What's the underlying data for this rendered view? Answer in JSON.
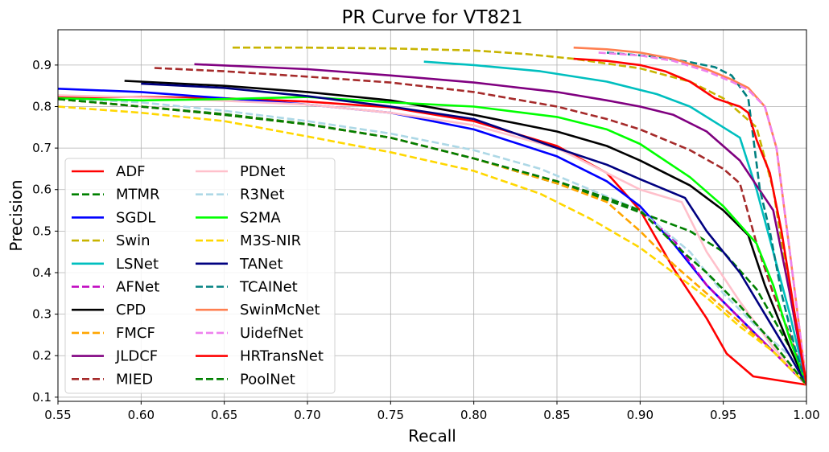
{
  "chart_data": {
    "type": "line",
    "title": "PR Curve for VT821",
    "xlabel": "Recall",
    "ylabel": "Precision",
    "xlim": [
      0.55,
      1.0
    ],
    "ylim": [
      0.09,
      0.985
    ],
    "grid": true,
    "legend_position": "lower-left",
    "xticks": [
      "0.55",
      "0.60",
      "0.65",
      "0.70",
      "0.75",
      "0.80",
      "0.85",
      "0.90",
      "0.95",
      "1.00"
    ],
    "xtick_values": [
      0.55,
      0.6,
      0.65,
      0.7,
      0.75,
      0.8,
      0.85,
      0.9,
      0.95,
      1.0
    ],
    "yticks": [
      "0.1",
      "0.2",
      "0.3",
      "0.4",
      "0.5",
      "0.6",
      "0.7",
      "0.8",
      "0.9"
    ],
    "ytick_values": [
      0.1,
      0.2,
      0.3,
      0.4,
      0.5,
      0.6,
      0.7,
      0.8,
      0.9
    ],
    "series": [
      {
        "name": "ADF",
        "color": "#ff0000",
        "dash": "solid",
        "points": [
          [
            0.55,
            0.822
          ],
          [
            0.6,
            0.823
          ],
          [
            0.65,
            0.82
          ],
          [
            0.7,
            0.812
          ],
          [
            0.75,
            0.798
          ],
          [
            0.8,
            0.765
          ],
          [
            0.85,
            0.705
          ],
          [
            0.88,
            0.64
          ],
          [
            0.9,
            0.55
          ],
          [
            0.92,
            0.41
          ],
          [
            0.94,
            0.29
          ],
          [
            0.952,
            0.205
          ],
          [
            0.968,
            0.15
          ],
          [
            1.0,
            0.13
          ]
        ]
      },
      {
        "name": "MTMR",
        "color": "#008000",
        "dash": "dashed",
        "points": [
          [
            0.55,
            0.818
          ],
          [
            0.6,
            0.8
          ],
          [
            0.65,
            0.782
          ],
          [
            0.7,
            0.758
          ],
          [
            0.75,
            0.725
          ],
          [
            0.8,
            0.675
          ],
          [
            0.85,
            0.615
          ],
          [
            0.88,
            0.575
          ],
          [
            0.9,
            0.545
          ],
          [
            0.93,
            0.5
          ],
          [
            0.95,
            0.45
          ],
          [
            0.97,
            0.36
          ],
          [
            0.99,
            0.22
          ],
          [
            1.0,
            0.13
          ]
        ]
      },
      {
        "name": "SGDL",
        "color": "#0000ff",
        "dash": "solid",
        "points": [
          [
            0.55,
            0.843
          ],
          [
            0.6,
            0.835
          ],
          [
            0.65,
            0.82
          ],
          [
            0.7,
            0.805
          ],
          [
            0.75,
            0.785
          ],
          [
            0.8,
            0.745
          ],
          [
            0.85,
            0.68
          ],
          [
            0.88,
            0.62
          ],
          [
            0.9,
            0.56
          ],
          [
            0.92,
            0.47
          ],
          [
            0.94,
            0.37
          ],
          [
            0.96,
            0.29
          ],
          [
            0.98,
            0.21
          ],
          [
            1.0,
            0.13
          ]
        ]
      },
      {
        "name": "Swin",
        "color": "#c8b400",
        "dash": "dashed",
        "points": [
          [
            0.655,
            0.942
          ],
          [
            0.7,
            0.942
          ],
          [
            0.75,
            0.94
          ],
          [
            0.8,
            0.935
          ],
          [
            0.83,
            0.927
          ],
          [
            0.86,
            0.915
          ],
          [
            0.9,
            0.892
          ],
          [
            0.93,
            0.86
          ],
          [
            0.95,
            0.82
          ],
          [
            0.97,
            0.75
          ],
          [
            0.98,
            0.6
          ],
          [
            0.99,
            0.35
          ],
          [
            1.0,
            0.13
          ]
        ]
      },
      {
        "name": "LSNet",
        "color": "#00bfbf",
        "dash": "solid",
        "points": [
          [
            0.77,
            0.908
          ],
          [
            0.8,
            0.9
          ],
          [
            0.84,
            0.885
          ],
          [
            0.88,
            0.86
          ],
          [
            0.91,
            0.83
          ],
          [
            0.93,
            0.8
          ],
          [
            0.95,
            0.75
          ],
          [
            0.96,
            0.725
          ],
          [
            0.97,
            0.6
          ],
          [
            0.98,
            0.45
          ],
          [
            0.99,
            0.3
          ],
          [
            1.0,
            0.13
          ]
        ]
      },
      {
        "name": "AFNet",
        "color": "#bf00bf",
        "dash": "dashed",
        "points": [
          [
            0.55,
            0.818
          ],
          [
            0.6,
            0.8
          ],
          [
            0.65,
            0.78
          ],
          [
            0.7,
            0.757
          ],
          [
            0.75,
            0.725
          ],
          [
            0.8,
            0.675
          ],
          [
            0.85,
            0.62
          ],
          [
            0.88,
            0.58
          ],
          [
            0.9,
            0.55
          ],
          [
            0.92,
            0.48
          ],
          [
            0.94,
            0.37
          ],
          [
            0.96,
            0.29
          ],
          [
            0.98,
            0.21
          ],
          [
            1.0,
            0.13
          ]
        ]
      },
      {
        "name": "CPD",
        "color": "#000000",
        "dash": "solid",
        "points": [
          [
            0.59,
            0.862
          ],
          [
            0.65,
            0.85
          ],
          [
            0.7,
            0.835
          ],
          [
            0.75,
            0.815
          ],
          [
            0.8,
            0.78
          ],
          [
            0.85,
            0.74
          ],
          [
            0.88,
            0.705
          ],
          [
            0.9,
            0.67
          ],
          [
            0.93,
            0.61
          ],
          [
            0.95,
            0.55
          ],
          [
            0.965,
            0.49
          ],
          [
            0.975,
            0.37
          ],
          [
            0.99,
            0.22
          ],
          [
            1.0,
            0.13
          ]
        ]
      },
      {
        "name": "FMCF",
        "color": "#ffa500",
        "dash": "dashed",
        "points": [
          [
            0.55,
            0.818
          ],
          [
            0.6,
            0.8
          ],
          [
            0.65,
            0.78
          ],
          [
            0.7,
            0.757
          ],
          [
            0.75,
            0.725
          ],
          [
            0.8,
            0.675
          ],
          [
            0.85,
            0.615
          ],
          [
            0.88,
            0.57
          ],
          [
            0.9,
            0.5
          ],
          [
            0.92,
            0.42
          ],
          [
            0.94,
            0.35
          ],
          [
            0.96,
            0.28
          ],
          [
            0.98,
            0.21
          ],
          [
            1.0,
            0.13
          ]
        ]
      },
      {
        "name": "JLDCF",
        "color": "#800080",
        "dash": "solid",
        "points": [
          [
            0.632,
            0.902
          ],
          [
            0.7,
            0.89
          ],
          [
            0.75,
            0.875
          ],
          [
            0.8,
            0.858
          ],
          [
            0.85,
            0.835
          ],
          [
            0.88,
            0.815
          ],
          [
            0.9,
            0.8
          ],
          [
            0.92,
            0.78
          ],
          [
            0.94,
            0.74
          ],
          [
            0.96,
            0.67
          ],
          [
            0.98,
            0.55
          ],
          [
            0.99,
            0.35
          ],
          [
            1.0,
            0.13
          ]
        ]
      },
      {
        "name": "MIED",
        "color": "#a52a2a",
        "dash": "dashed",
        "points": [
          [
            0.608,
            0.893
          ],
          [
            0.65,
            0.885
          ],
          [
            0.7,
            0.872
          ],
          [
            0.75,
            0.858
          ],
          [
            0.8,
            0.835
          ],
          [
            0.85,
            0.8
          ],
          [
            0.88,
            0.77
          ],
          [
            0.9,
            0.745
          ],
          [
            0.93,
            0.695
          ],
          [
            0.95,
            0.65
          ],
          [
            0.96,
            0.615
          ],
          [
            0.97,
            0.47
          ],
          [
            0.98,
            0.35
          ],
          [
            0.99,
            0.25
          ],
          [
            1.0,
            0.13
          ]
        ]
      },
      {
        "name": "PDNet",
        "color": "#ffc0cb",
        "dash": "solid",
        "points": [
          [
            0.55,
            0.827
          ],
          [
            0.6,
            0.822
          ],
          [
            0.65,
            0.814
          ],
          [
            0.7,
            0.805
          ],
          [
            0.75,
            0.785
          ],
          [
            0.8,
            0.755
          ],
          [
            0.85,
            0.7
          ],
          [
            0.88,
            0.64
          ],
          [
            0.9,
            0.6
          ],
          [
            0.925,
            0.57
          ],
          [
            0.94,
            0.45
          ],
          [
            0.96,
            0.33
          ],
          [
            0.98,
            0.22
          ],
          [
            1.0,
            0.13
          ]
        ]
      },
      {
        "name": "R3Net",
        "color": "#add8e6",
        "dash": "dashed",
        "points": [
          [
            0.55,
            0.82
          ],
          [
            0.6,
            0.81
          ],
          [
            0.65,
            0.79
          ],
          [
            0.7,
            0.765
          ],
          [
            0.75,
            0.735
          ],
          [
            0.8,
            0.695
          ],
          [
            0.84,
            0.65
          ],
          [
            0.87,
            0.6
          ],
          [
            0.9,
            0.55
          ],
          [
            0.93,
            0.45
          ],
          [
            0.95,
            0.35
          ],
          [
            0.97,
            0.27
          ],
          [
            0.99,
            0.2
          ],
          [
            1.0,
            0.13
          ]
        ]
      },
      {
        "name": "S2MA",
        "color": "#00ff00",
        "dash": "solid",
        "points": [
          [
            0.55,
            0.82
          ],
          [
            0.6,
            0.815
          ],
          [
            0.65,
            0.818
          ],
          [
            0.7,
            0.823
          ],
          [
            0.75,
            0.81
          ],
          [
            0.8,
            0.8
          ],
          [
            0.85,
            0.775
          ],
          [
            0.88,
            0.745
          ],
          [
            0.9,
            0.71
          ],
          [
            0.93,
            0.63
          ],
          [
            0.95,
            0.56
          ],
          [
            0.97,
            0.47
          ],
          [
            0.98,
            0.37
          ],
          [
            0.99,
            0.24
          ],
          [
            1.0,
            0.13
          ]
        ]
      },
      {
        "name": "M3S-NIR",
        "color": "#ffd700",
        "dash": "dashed",
        "points": [
          [
            0.55,
            0.8
          ],
          [
            0.6,
            0.785
          ],
          [
            0.65,
            0.765
          ],
          [
            0.7,
            0.728
          ],
          [
            0.75,
            0.69
          ],
          [
            0.8,
            0.645
          ],
          [
            0.84,
            0.59
          ],
          [
            0.87,
            0.53
          ],
          [
            0.9,
            0.46
          ],
          [
            0.92,
            0.4
          ],
          [
            0.94,
            0.34
          ],
          [
            0.96,
            0.27
          ],
          [
            0.98,
            0.21
          ],
          [
            1.0,
            0.13
          ]
        ]
      },
      {
        "name": "TANet",
        "color": "#000080",
        "dash": "solid",
        "points": [
          [
            0.6,
            0.855
          ],
          [
            0.65,
            0.845
          ],
          [
            0.7,
            0.825
          ],
          [
            0.75,
            0.8
          ],
          [
            0.8,
            0.77
          ],
          [
            0.85,
            0.7
          ],
          [
            0.88,
            0.66
          ],
          [
            0.9,
            0.625
          ],
          [
            0.927,
            0.58
          ],
          [
            0.94,
            0.5
          ],
          [
            0.96,
            0.4
          ],
          [
            0.975,
            0.3
          ],
          [
            0.99,
            0.2
          ],
          [
            1.0,
            0.13
          ]
        ]
      },
      {
        "name": "TCAINet",
        "color": "#008080",
        "dash": "dashed",
        "points": [
          [
            0.88,
            0.93
          ],
          [
            0.91,
            0.92
          ],
          [
            0.93,
            0.907
          ],
          [
            0.945,
            0.895
          ],
          [
            0.955,
            0.875
          ],
          [
            0.965,
            0.82
          ],
          [
            0.972,
            0.6
          ],
          [
            0.978,
            0.5
          ],
          [
            0.985,
            0.35
          ],
          [
            0.993,
            0.22
          ],
          [
            1.0,
            0.13
          ]
        ]
      },
      {
        "name": "SwinMcNet",
        "color": "#ff7f50",
        "dash": "solid",
        "points": [
          [
            0.86,
            0.942
          ],
          [
            0.88,
            0.938
          ],
          [
            0.9,
            0.93
          ],
          [
            0.92,
            0.915
          ],
          [
            0.94,
            0.89
          ],
          [
            0.955,
            0.865
          ],
          [
            0.965,
            0.845
          ],
          [
            0.975,
            0.8
          ],
          [
            0.982,
            0.7
          ],
          [
            0.99,
            0.45
          ],
          [
            1.0,
            0.13
          ]
        ]
      },
      {
        "name": "UidefNet",
        "color": "#ee82ee",
        "dash": "dashed",
        "points": [
          [
            0.875,
            0.93
          ],
          [
            0.9,
            0.923
          ],
          [
            0.92,
            0.91
          ],
          [
            0.94,
            0.885
          ],
          [
            0.955,
            0.86
          ],
          [
            0.965,
            0.84
          ],
          [
            0.975,
            0.8
          ],
          [
            0.982,
            0.7
          ],
          [
            0.99,
            0.45
          ],
          [
            1.0,
            0.13
          ]
        ]
      },
      {
        "name": "HRTransNet",
        "color": "#ff0000",
        "dash": "solid",
        "points": [
          [
            0.86,
            0.915
          ],
          [
            0.88,
            0.91
          ],
          [
            0.9,
            0.9
          ],
          [
            0.915,
            0.885
          ],
          [
            0.93,
            0.86
          ],
          [
            0.945,
            0.82
          ],
          [
            0.96,
            0.8
          ],
          [
            0.965,
            0.785
          ],
          [
            0.97,
            0.72
          ],
          [
            0.978,
            0.64
          ],
          [
            0.985,
            0.5
          ],
          [
            0.993,
            0.3
          ],
          [
            1.0,
            0.13
          ]
        ]
      },
      {
        "name": "PoolNet",
        "color": "#008000",
        "dash": "dashed",
        "points": [
          [
            0.55,
            0.818
          ],
          [
            0.6,
            0.8
          ],
          [
            0.65,
            0.78
          ],
          [
            0.7,
            0.757
          ],
          [
            0.75,
            0.725
          ],
          [
            0.8,
            0.675
          ],
          [
            0.85,
            0.62
          ],
          [
            0.88,
            0.58
          ],
          [
            0.9,
            0.55
          ],
          [
            0.92,
            0.47
          ],
          [
            0.94,
            0.4
          ],
          [
            0.96,
            0.32
          ],
          [
            0.98,
            0.23
          ],
          [
            1.0,
            0.13
          ]
        ]
      }
    ]
  }
}
